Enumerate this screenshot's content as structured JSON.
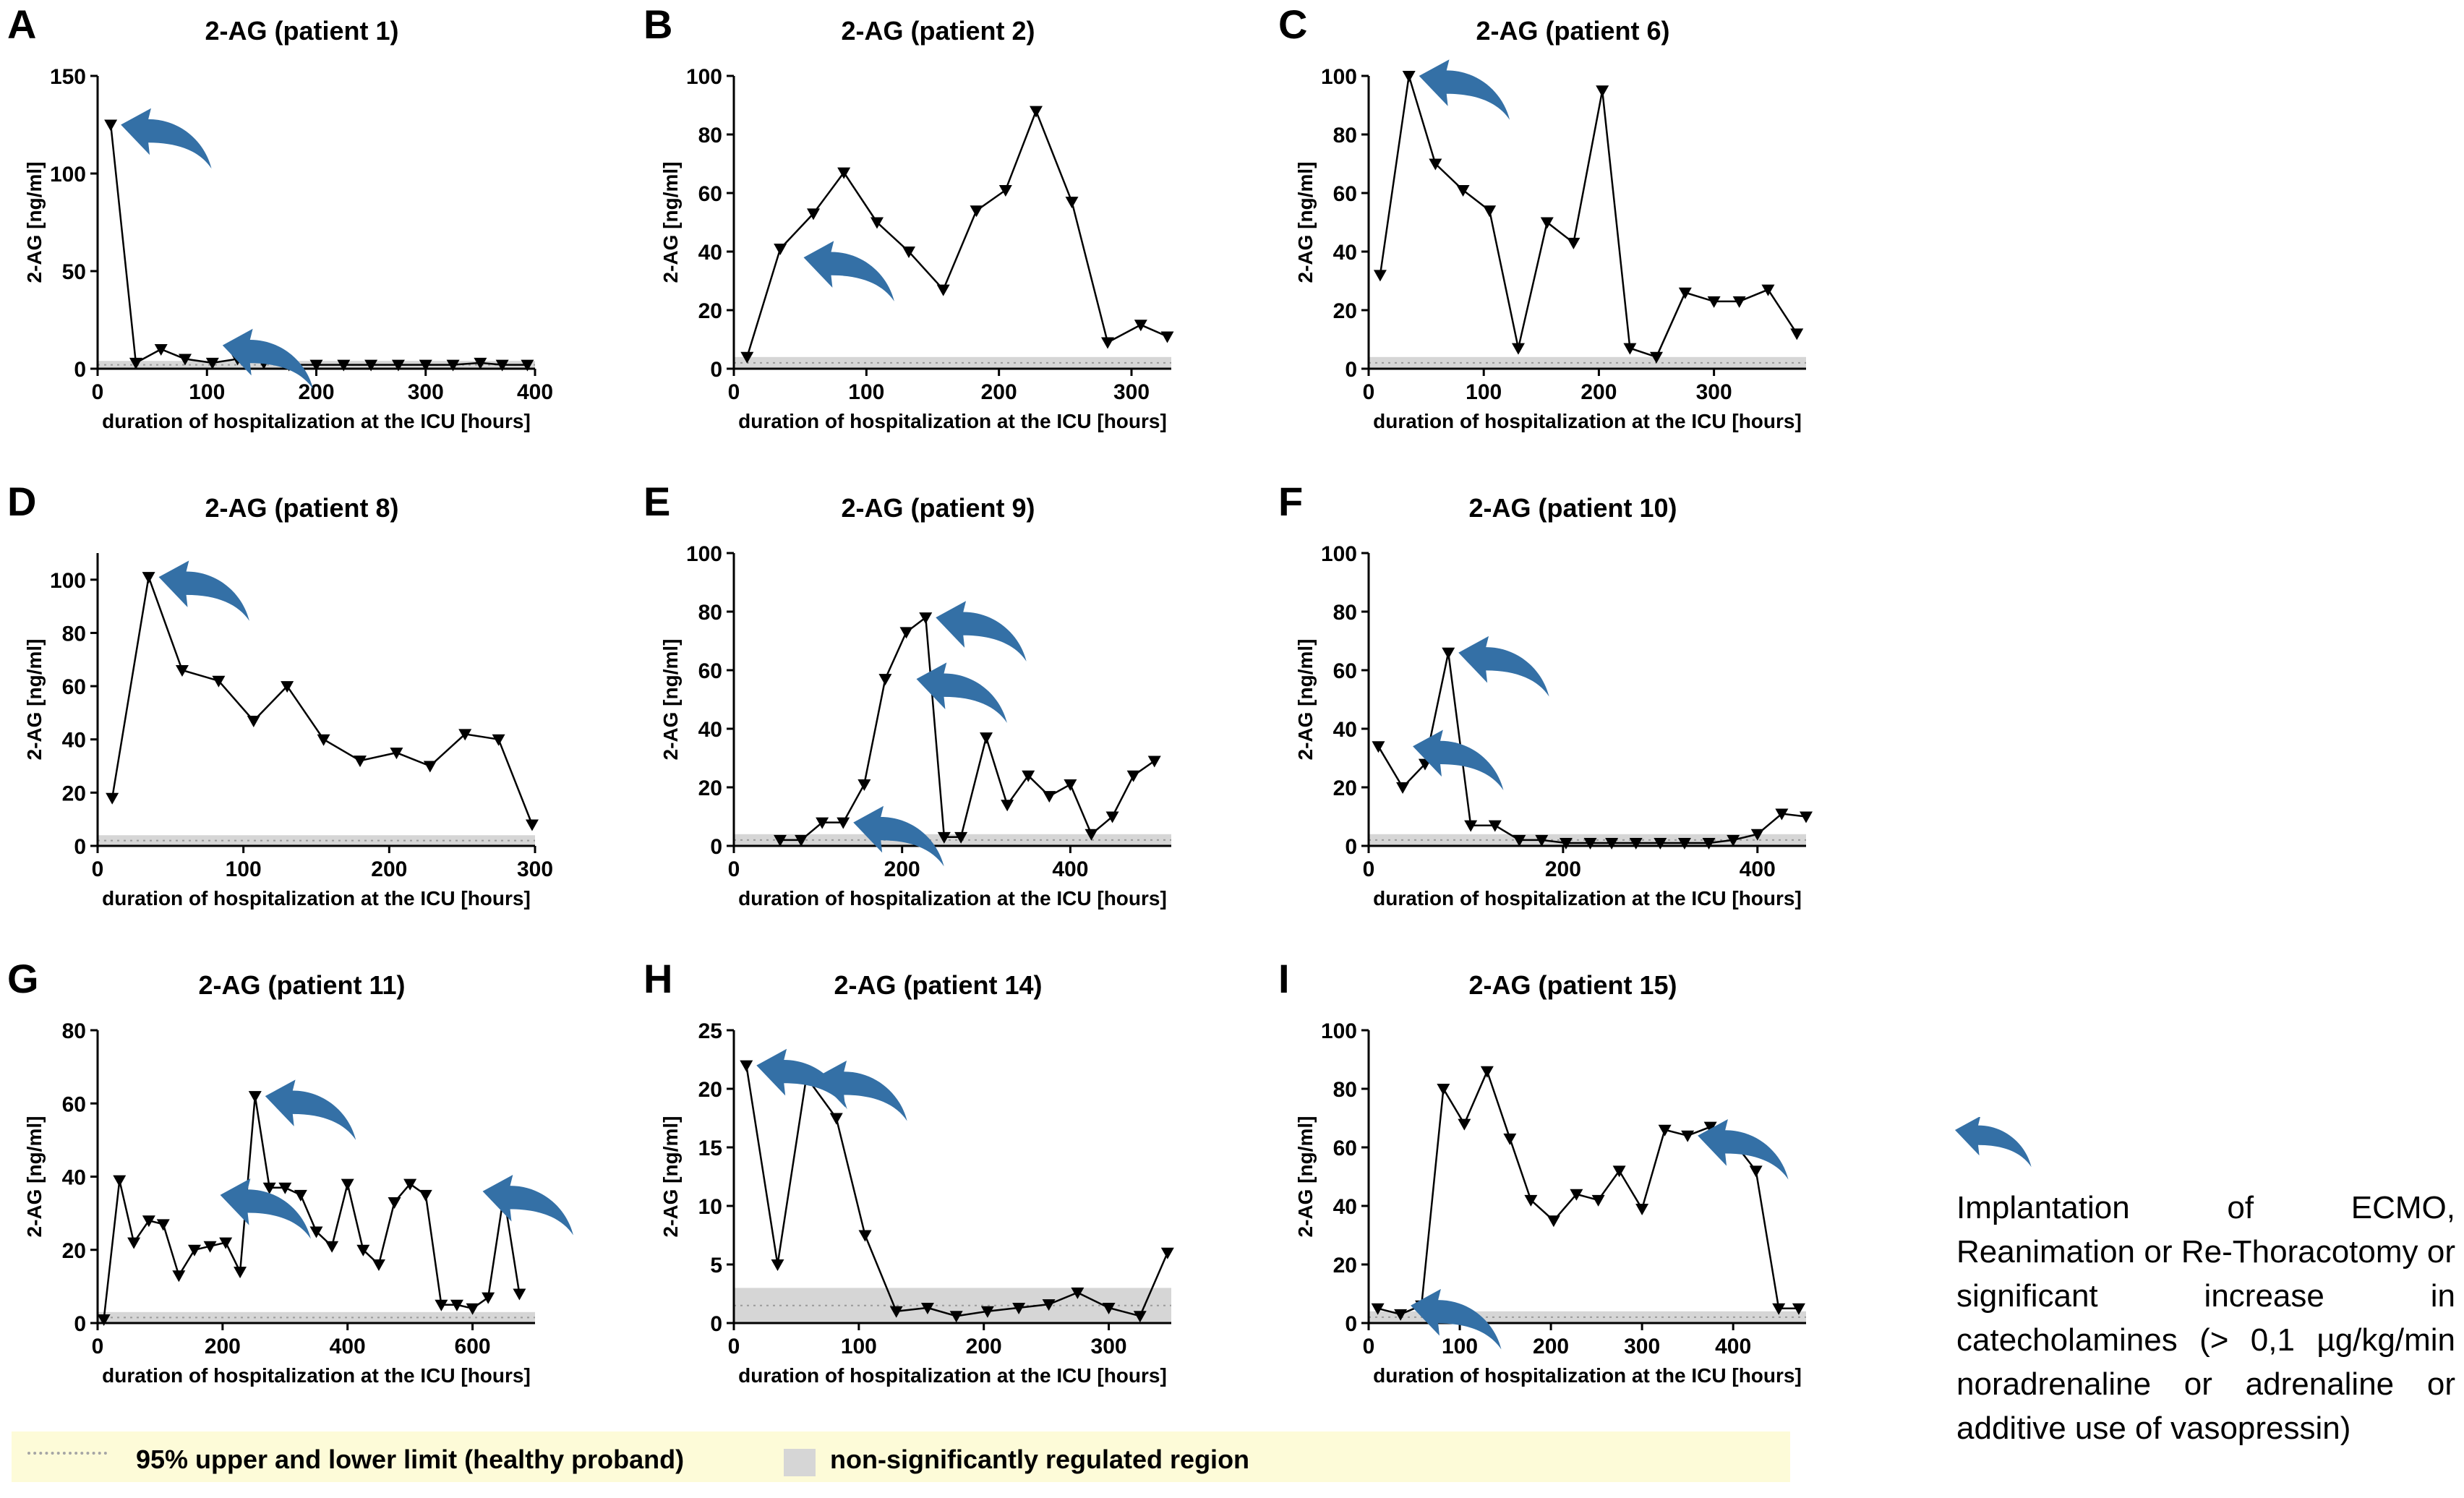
{
  "chart_data": [
    {
      "type": "line",
      "panel_label": "A",
      "title": "2-AG (patient 1)",
      "xlabel": "duration of hospitalization at the ICU [hours]",
      "ylabel": "2-AG [ng/ml]",
      "xlim": [
        0,
        400
      ],
      "ylim": [
        0,
        150
      ],
      "xticks": [
        "0",
        "100",
        "200",
        "300",
        "400"
      ],
      "yticks": [
        "0",
        "50",
        "100",
        "150"
      ],
      "x": [
        12,
        35,
        58,
        80,
        105,
        128,
        152,
        175,
        200,
        225,
        250,
        275,
        300,
        325,
        350,
        370,
        393
      ],
      "y": [
        125,
        3,
        10,
        5,
        3,
        5,
        3,
        2,
        2,
        2,
        2,
        2,
        2,
        2,
        3,
        2,
        2
      ],
      "event_arrows": [
        {
          "x": 12,
          "y": 125
        },
        {
          "x": 105,
          "y": 12
        }
      ],
      "band": [
        0,
        4
      ]
    },
    {
      "type": "line",
      "panel_label": "B",
      "title": "2-AG (patient 2)",
      "xlabel": "duration of hospitalization at the ICU [hours]",
      "ylabel": "2-AG [ng/ml]",
      "xlim": [
        0,
        330
      ],
      "ylim": [
        0,
        100
      ],
      "xticks": [
        "0",
        "100",
        "200",
        "300"
      ],
      "yticks": [
        "0",
        "20",
        "40",
        "60",
        "80",
        "100"
      ],
      "x": [
        10,
        35,
        60,
        83,
        108,
        132,
        158,
        183,
        205,
        228,
        255,
        282,
        307,
        327
      ],
      "y": [
        4,
        41,
        53,
        67,
        50,
        40,
        27,
        54,
        61,
        88,
        57,
        9,
        15,
        11
      ],
      "event_arrows": [
        {
          "x": 45,
          "y": 38
        }
      ],
      "band": [
        0,
        4
      ]
    },
    {
      "type": "line",
      "panel_label": "C",
      "title": "2-AG (patient 6)",
      "xlabel": "duration of hospitalization at the ICU [hours]",
      "ylabel": "2-AG [ng/ml]",
      "xlim": [
        0,
        380
      ],
      "ylim": [
        0,
        100
      ],
      "xticks": [
        "0",
        "100",
        "200",
        "300"
      ],
      "yticks": [
        "0",
        "20",
        "40",
        "60",
        "80",
        "100"
      ],
      "x": [
        10,
        35,
        58,
        82,
        105,
        130,
        155,
        178,
        203,
        227,
        250,
        275,
        300,
        322,
        347,
        372
      ],
      "y": [
        32,
        100,
        70,
        61,
        54,
        7,
        50,
        43,
        95,
        7,
        4,
        26,
        23,
        23,
        27,
        12
      ],
      "event_arrows": [
        {
          "x": 35,
          "y": 100
        }
      ],
      "band": [
        0,
        4
      ]
    },
    {
      "type": "line",
      "panel_label": "D",
      "title": "2-AG (patient 8)",
      "xlabel": "duration of hospitalization at the ICU [hours]",
      "ylabel": "2-AG [ng/ml]",
      "xlim": [
        0,
        300
      ],
      "ylim": [
        0,
        110
      ],
      "xticks": [
        "0",
        "100",
        "200",
        "300"
      ],
      "yticks": [
        "0",
        "20",
        "40",
        "60",
        "80",
        "100"
      ],
      "x": [
        10,
        35,
        58,
        83,
        107,
        130,
        155,
        180,
        205,
        228,
        252,
        275,
        298
      ],
      "y": [
        18,
        101,
        66,
        62,
        47,
        60,
        40,
        32,
        35,
        30,
        42,
        40,
        8
      ],
      "event_arrows": [
        {
          "x": 35,
          "y": 101
        }
      ],
      "band": [
        0,
        4
      ]
    },
    {
      "type": "line",
      "panel_label": "E",
      "title": "2-AG (patient 9)",
      "xlabel": "duration of hospitalization at the ICU [hours]",
      "ylabel": "2-AG [ng/ml]",
      "xlim": [
        0,
        520
      ],
      "ylim": [
        0,
        100
      ],
      "xticks": [
        "0",
        "200",
        "400"
      ],
      "yticks": [
        "0",
        "20",
        "40",
        "60",
        "80",
        "100"
      ],
      "x": [
        55,
        80,
        105,
        130,
        155,
        180,
        205,
        228,
        250,
        270,
        300,
        325,
        350,
        375,
        400,
        425,
        450,
        475,
        500
      ],
      "y": [
        2,
        2,
        8,
        8,
        21,
        57,
        73,
        78,
        3,
        3,
        37,
        14,
        24,
        17,
        21,
        4,
        10,
        24,
        29
      ],
      "event_arrows": [
        {
          "x": 228,
          "y": 78
        },
        {
          "x": 205,
          "y": 57
        },
        {
          "x": 130,
          "y": 8
        }
      ],
      "band": [
        0,
        4
      ]
    },
    {
      "type": "line",
      "panel_label": "F",
      "title": "2-AG (patient 10)",
      "xlabel": "duration of hospitalization at the ICU [hours]",
      "ylabel": "2-AG [ng/ml]",
      "xlim": [
        0,
        450
      ],
      "ylim": [
        0,
        100
      ],
      "xticks": [
        "0",
        "200",
        "400"
      ],
      "yticks": [
        "0",
        "20",
        "40",
        "60",
        "80",
        "100"
      ],
      "x": [
        10,
        35,
        58,
        82,
        105,
        130,
        155,
        178,
        203,
        228,
        250,
        275,
        300,
        325,
        350,
        375,
        400,
        425,
        450
      ],
      "y": [
        34,
        20,
        28,
        66,
        7,
        7,
        2,
        2,
        1,
        1,
        1,
        1,
        1,
        1,
        1,
        2,
        4,
        11,
        10
      ],
      "event_arrows": [
        {
          "x": 82,
          "y": 66
        },
        {
          "x": 35,
          "y": 34
        }
      ],
      "band": [
        0,
        4
      ]
    },
    {
      "type": "line",
      "panel_label": "G",
      "title": "2-AG (patient 11)",
      "xlabel": "duration of hospitalization at the ICU [hours]",
      "ylabel": "2-AG [ng/ml]",
      "xlim": [
        0,
        700
      ],
      "ylim": [
        0,
        80
      ],
      "xticks": [
        "0",
        "200",
        "400",
        "600"
      ],
      "yticks": [
        "0",
        "20",
        "40",
        "60",
        "80"
      ],
      "x": [
        10,
        35,
        58,
        82,
        105,
        130,
        155,
        180,
        205,
        228,
        252,
        275,
        300,
        325,
        350,
        375,
        400,
        425,
        450,
        475,
        500,
        525,
        550,
        575,
        600,
        625,
        650,
        675
      ],
      "y": [
        1,
        39,
        22,
        28,
        27,
        13,
        20,
        21,
        22,
        14,
        62,
        37,
        37,
        35,
        25,
        21,
        38,
        20,
        16,
        33,
        38,
        35,
        5,
        5,
        4,
        7,
        35,
        8
      ],
      "event_arrows": [
        {
          "x": 180,
          "y": 35
        },
        {
          "x": 252,
          "y": 62
        },
        {
          "x": 600,
          "y": 36
        }
      ],
      "band": [
        0,
        3
      ]
    },
    {
      "type": "line",
      "panel_label": "H",
      "title": "2-AG (patient 14)",
      "xlabel": "duration of hospitalization at the ICU [hours]",
      "ylabel": "2-AG [ng/ml]",
      "xlim": [
        0,
        350
      ],
      "ylim": [
        0,
        25
      ],
      "xticks": [
        "0",
        "100",
        "200",
        "300"
      ],
      "yticks": [
        "0",
        "5",
        "10",
        "15",
        "20",
        "25"
      ],
      "x": [
        10,
        35,
        58,
        82,
        105,
        130,
        155,
        178,
        203,
        228,
        252,
        275,
        300,
        325,
        347
      ],
      "y": [
        22,
        5,
        21,
        17.5,
        7.5,
        1,
        1.3,
        0.6,
        1,
        1.3,
        1.6,
        2.6,
        1.3,
        0.6,
        6
      ],
      "event_arrows": [
        {
          "x": 10,
          "y": 22
        },
        {
          "x": 58,
          "y": 21
        }
      ],
      "band": [
        0,
        3
      ]
    },
    {
      "type": "line",
      "panel_label": "I",
      "title": "2-AG (patient 15)",
      "xlabel": "duration of hospitalization at the ICU [hours]",
      "ylabel": "2-AG [ng/ml]",
      "xlim": [
        0,
        480
      ],
      "ylim": [
        0,
        100
      ],
      "xticks": [
        "0",
        "100",
        "200",
        "300",
        "400"
      ],
      "yticks": [
        "0",
        "20",
        "40",
        "60",
        "80",
        "100"
      ],
      "x": [
        10,
        35,
        58,
        82,
        105,
        130,
        155,
        178,
        203,
        228,
        252,
        275,
        300,
        325,
        350,
        375,
        400,
        425,
        450,
        472
      ],
      "y": [
        5,
        3,
        6,
        80,
        68,
        86,
        63,
        42,
        35,
        44,
        42,
        52,
        39,
        66,
        64,
        67,
        62,
        52,
        5,
        5
      ],
      "event_arrows": [
        {
          "x": 350,
          "y": 64
        },
        {
          "x": 35,
          "y": 6
        }
      ],
      "band": [
        0,
        4
      ]
    }
  ],
  "legend": {
    "dotted_label": "95% upper and lower limit (healthy proband)",
    "region_label": "non-significantly regulated region"
  },
  "side_note": {
    "text": "Implantation of ECMO, Reanimation or Re-Thoracotomy or significant increase in catecholamines (> 0,1 µg/kg/min noradrenaline or adrenaline or additive use of vasopressin)"
  },
  "colors": {
    "arrow": "#3470a6",
    "band": "#d6d6d6",
    "line": "#000000",
    "legend_bg": "#fdfbd8"
  }
}
